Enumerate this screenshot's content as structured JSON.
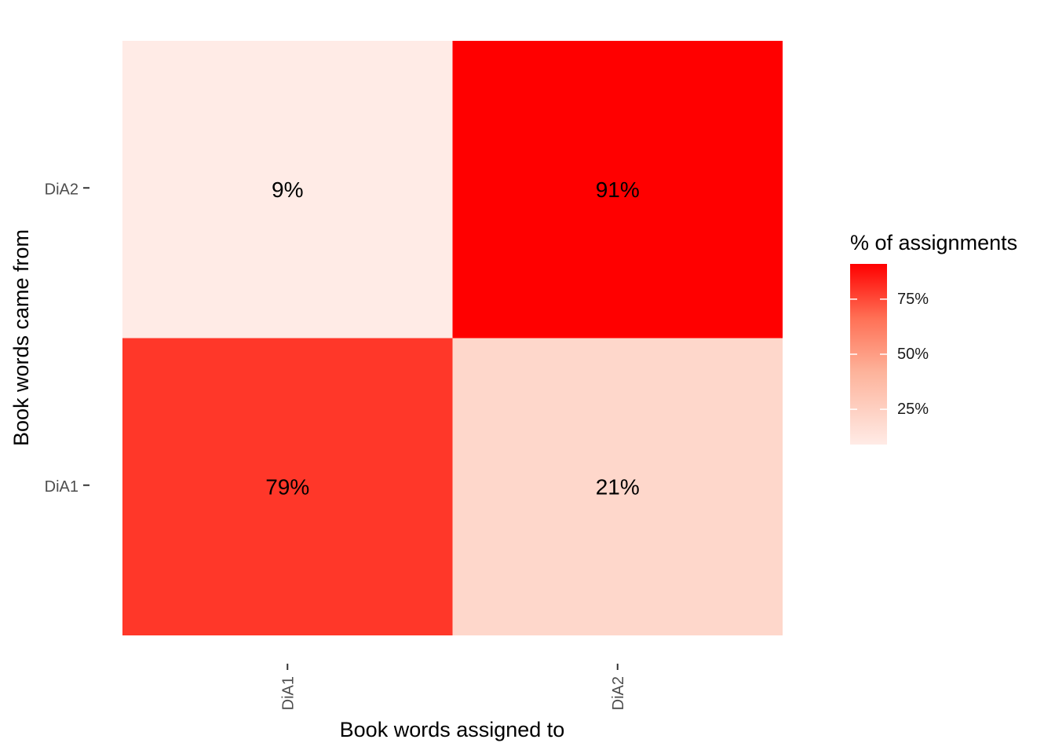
{
  "chart_data": {
    "type": "heatmap",
    "title": "",
    "xlabel": "Book words assigned to",
    "ylabel": "Book words came from",
    "x_categories": [
      "DiA1",
      "DiA2"
    ],
    "y_categories": [
      "DiA1",
      "DiA2"
    ],
    "cells": [
      {
        "x": "DiA1",
        "y": "DiA2",
        "value": 9,
        "label": "9%"
      },
      {
        "x": "DiA2",
        "y": "DiA2",
        "value": 91,
        "label": "91%"
      },
      {
        "x": "DiA1",
        "y": "DiA1",
        "value": 79,
        "label": "79%"
      },
      {
        "x": "DiA2",
        "y": "DiA1",
        "value": 21,
        "label": "21%"
      }
    ],
    "legend": {
      "title": "% of assignments",
      "placement": "right",
      "breaks": [
        {
          "value": 75,
          "label": "75%"
        },
        {
          "value": 50,
          "label": "50%"
        },
        {
          "value": 25,
          "label": "25%"
        }
      ],
      "range": [
        9,
        91
      ],
      "color_low": "#ffffff",
      "color_high": "#ff0000"
    },
    "x_tick_orientation": "vertical",
    "grid": false
  }
}
